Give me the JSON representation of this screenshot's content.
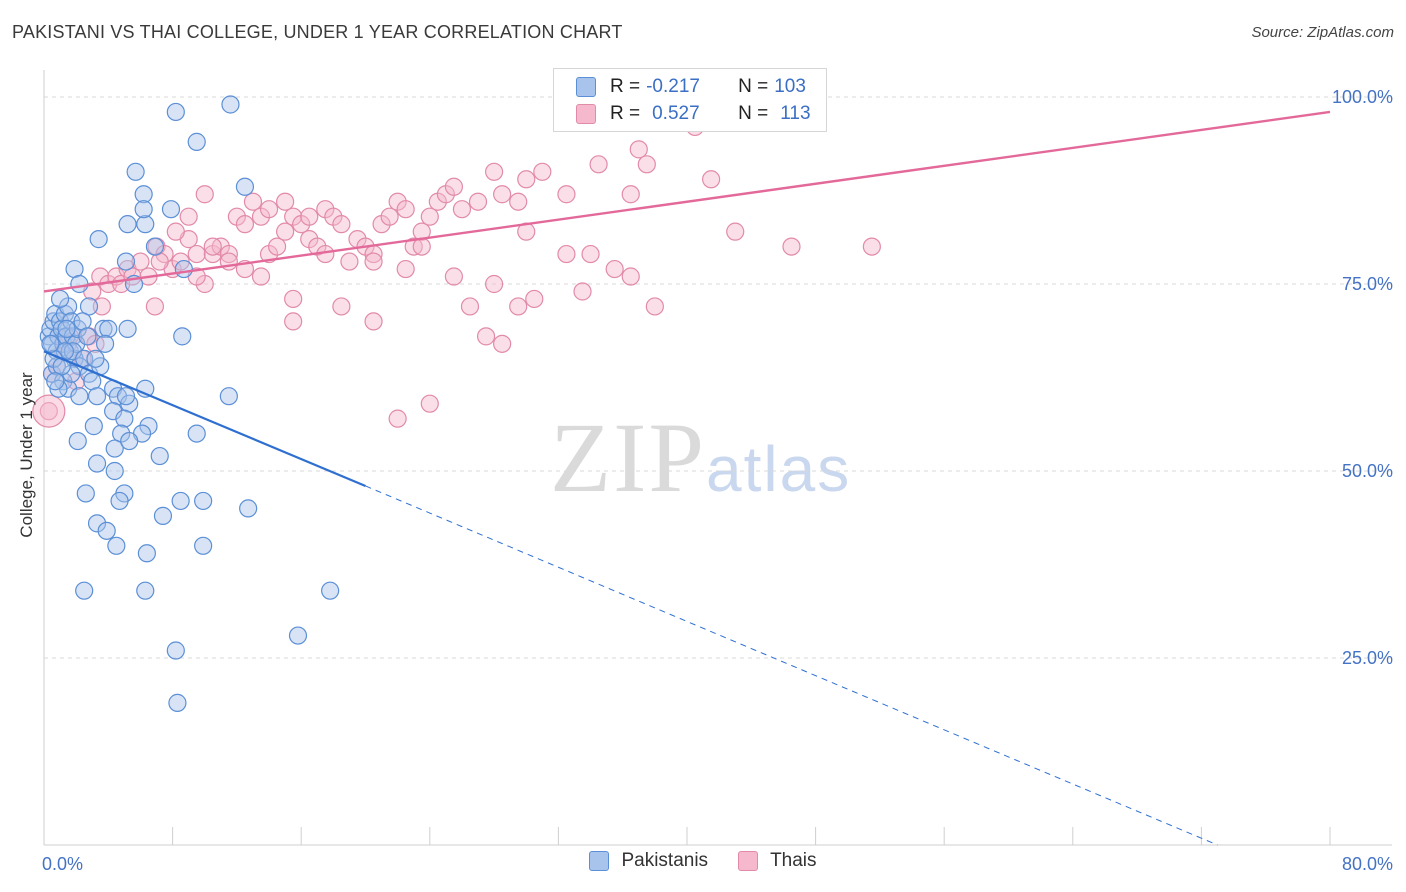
{
  "title": "PAKISTANI VS THAI COLLEGE, UNDER 1 YEAR CORRELATION CHART",
  "source": "Source: ZipAtlas.com",
  "watermark": {
    "zip": "ZIP",
    "atlas": "atlas"
  },
  "legend": {
    "r_label": "R =",
    "n_label": "N =",
    "rows": [
      {
        "r": "-0.217",
        "n": "103"
      },
      {
        "r": "0.527",
        "n": "113"
      }
    ]
  },
  "colors": {
    "pakistanis_fill": "#a9c4ec",
    "pakistanis_stroke": "#5b8fd6",
    "pakistanis_line": "#2e6fd0",
    "thais_fill": "#f5b8cd",
    "thais_stroke": "#e28aaa",
    "thais_line": "#e3699a",
    "grid": "#d9d9d9",
    "axis_text": "#4472c4"
  },
  "chart_data": {
    "type": "scatter",
    "xlabel": "",
    "ylabel": "College, Under 1 year",
    "xlim": [
      0,
      80
    ],
    "ylim": [
      0,
      103
    ],
    "x_ticks": [
      "0.0%",
      "80.0%"
    ],
    "y_ticks": [
      {
        "value": 25,
        "label": "25.0%"
      },
      {
        "value": 50,
        "label": "50.0%"
      },
      {
        "value": 75,
        "label": "75.0%"
      },
      {
        "value": 100,
        "label": "100.0%"
      }
    ],
    "grid": true,
    "legend_position": "bottom-center",
    "series": [
      {
        "name": "Pakistanis",
        "points": [
          [
            0.3,
            68
          ],
          [
            0.4,
            69
          ],
          [
            0.5,
            67
          ],
          [
            0.6,
            70
          ],
          [
            0.7,
            71
          ],
          [
            0.8,
            66
          ],
          [
            0.9,
            68
          ],
          [
            1.0,
            70
          ],
          [
            1.1,
            69
          ],
          [
            1.2,
            67
          ],
          [
            1.3,
            71
          ],
          [
            1.4,
            68
          ],
          [
            1.5,
            72
          ],
          [
            1.6,
            66
          ],
          [
            1.7,
            70
          ],
          [
            1.8,
            68
          ],
          [
            1.9,
            65
          ],
          [
            2.0,
            67
          ],
          [
            2.1,
            69
          ],
          [
            2.2,
            64
          ],
          [
            0.5,
            63
          ],
          [
            0.8,
            64
          ],
          [
            1.2,
            62
          ],
          [
            1.5,
            61
          ],
          [
            1.8,
            66
          ],
          [
            2.2,
            60
          ],
          [
            2.5,
            65
          ],
          [
            2.8,
            63
          ],
          [
            3.0,
            62
          ],
          [
            3.3,
            60
          ],
          [
            1.9,
            77
          ],
          [
            2.2,
            75
          ],
          [
            3.7,
            69
          ],
          [
            4.0,
            69
          ],
          [
            5.2,
            69
          ],
          [
            3.4,
            81
          ],
          [
            2.8,
            72
          ],
          [
            3.5,
            64
          ],
          [
            3.8,
            67
          ],
          [
            4.3,
            61
          ],
          [
            4.6,
            60
          ],
          [
            5.3,
            59
          ],
          [
            5.1,
            60
          ],
          [
            6.3,
            61
          ],
          [
            4.3,
            58
          ],
          [
            5.0,
            57
          ],
          [
            4.8,
            55
          ],
          [
            6.5,
            56
          ],
          [
            6.1,
            55
          ],
          [
            7.2,
            52
          ],
          [
            2.1,
            54
          ],
          [
            3.1,
            56
          ],
          [
            4.4,
            53
          ],
          [
            5.3,
            54
          ],
          [
            3.3,
            51
          ],
          [
            4.4,
            50
          ],
          [
            5.0,
            47
          ],
          [
            4.7,
            46
          ],
          [
            2.6,
            47
          ],
          [
            3.3,
            43
          ],
          [
            3.9,
            42
          ],
          [
            4.5,
            40
          ],
          [
            6.4,
            39
          ],
          [
            7.4,
            44
          ],
          [
            8.5,
            46
          ],
          [
            9.9,
            46
          ],
          [
            9.9,
            40
          ],
          [
            11.5,
            60
          ],
          [
            12.7,
            45
          ],
          [
            9.5,
            55
          ],
          [
            8.6,
            68
          ],
          [
            8.7,
            77
          ],
          [
            6.9,
            80
          ],
          [
            5.1,
            78
          ],
          [
            5.6,
            75
          ],
          [
            6.3,
            83
          ],
          [
            5.2,
            83
          ],
          [
            6.2,
            87
          ],
          [
            5.7,
            90
          ],
          [
            6.2,
            85
          ],
          [
            8.2,
            98
          ],
          [
            9.5,
            94
          ],
          [
            11.6,
            99
          ],
          [
            12.5,
            88
          ],
          [
            7.9,
            85
          ],
          [
            2.5,
            34
          ],
          [
            6.3,
            34
          ],
          [
            8.2,
            26
          ],
          [
            8.3,
            19
          ],
          [
            15.8,
            28
          ],
          [
            17.8,
            34
          ],
          [
            1.0,
            73
          ],
          [
            1.3,
            66
          ],
          [
            0.6,
            65
          ],
          [
            2.4,
            70
          ],
          [
            1.7,
            63
          ],
          [
            0.9,
            61
          ],
          [
            0.4,
            67
          ],
          [
            1.1,
            64
          ],
          [
            2.7,
            68
          ],
          [
            3.2,
            65
          ],
          [
            1.4,
            69
          ],
          [
            0.7,
            62
          ]
        ]
      },
      {
        "name": "Thais",
        "points": [
          [
            0.3,
            58
          ],
          [
            0.5,
            63
          ],
          [
            0.8,
            64
          ],
          [
            1.2,
            66
          ],
          [
            1.6,
            68
          ],
          [
            2.0,
            62
          ],
          [
            1.5,
            67
          ],
          [
            2.4,
            65
          ],
          [
            2.8,
            68
          ],
          [
            3.2,
            67
          ],
          [
            3.0,
            74
          ],
          [
            3.5,
            76
          ],
          [
            4.0,
            75
          ],
          [
            4.5,
            76
          ],
          [
            4.8,
            75
          ],
          [
            5.2,
            77
          ],
          [
            5.5,
            76
          ],
          [
            6.0,
            78
          ],
          [
            6.5,
            76
          ],
          [
            7.0,
            80
          ],
          [
            7.5,
            79
          ],
          [
            8.0,
            77
          ],
          [
            8.5,
            78
          ],
          [
            9.0,
            81
          ],
          [
            9.5,
            79
          ],
          [
            10.0,
            75
          ],
          [
            10.5,
            79
          ],
          [
            11.0,
            80
          ],
          [
            11.5,
            79
          ],
          [
            12.0,
            84
          ],
          [
            12.5,
            83
          ],
          [
            13.0,
            86
          ],
          [
            13.5,
            84
          ],
          [
            14.0,
            79
          ],
          [
            14.5,
            80
          ],
          [
            15.0,
            82
          ],
          [
            15.5,
            84
          ],
          [
            16.0,
            83
          ],
          [
            16.5,
            81
          ],
          [
            17.0,
            80
          ],
          [
            17.5,
            85
          ],
          [
            18.0,
            84
          ],
          [
            18.5,
            83
          ],
          [
            19.0,
            78
          ],
          [
            19.5,
            81
          ],
          [
            20.0,
            80
          ],
          [
            20.5,
            79
          ],
          [
            21.0,
            83
          ],
          [
            21.5,
            84
          ],
          [
            22.0,
            86
          ],
          [
            22.5,
            85
          ],
          [
            23.0,
            80
          ],
          [
            23.5,
            82
          ],
          [
            24.0,
            84
          ],
          [
            24.5,
            86
          ],
          [
            25.0,
            87
          ],
          [
            25.5,
            88
          ],
          [
            26.0,
            85
          ],
          [
            27.0,
            86
          ],
          [
            28.0,
            90
          ],
          [
            28.5,
            87
          ],
          [
            29.5,
            86
          ],
          [
            30.0,
            89
          ],
          [
            31.0,
            90
          ],
          [
            32.5,
            87
          ],
          [
            34.5,
            91
          ],
          [
            36.5,
            87
          ],
          [
            37.0,
            93
          ],
          [
            37.5,
            91
          ],
          [
            39.0,
            100
          ],
          [
            40.5,
            96
          ],
          [
            41.5,
            89
          ],
          [
            43.0,
            82
          ],
          [
            46.5,
            80
          ],
          [
            51.5,
            80
          ],
          [
            6.9,
            72
          ],
          [
            7.2,
            78
          ],
          [
            8.2,
            82
          ],
          [
            9.5,
            76
          ],
          [
            10.5,
            80
          ],
          [
            11.5,
            78
          ],
          [
            12.5,
            77
          ],
          [
            13.5,
            76
          ],
          [
            15.5,
            73
          ],
          [
            15.5,
            70
          ],
          [
            17.5,
            79
          ],
          [
            18.5,
            72
          ],
          [
            20.5,
            78
          ],
          [
            22.5,
            77
          ],
          [
            23.5,
            80
          ],
          [
            25.5,
            76
          ],
          [
            26.5,
            72
          ],
          [
            27.5,
            68
          ],
          [
            28.5,
            67
          ],
          [
            29.5,
            72
          ],
          [
            30.5,
            73
          ],
          [
            32.5,
            79
          ],
          [
            33.5,
            74
          ],
          [
            35.5,
            77
          ],
          [
            36.5,
            76
          ],
          [
            38.0,
            72
          ],
          [
            24.0,
            59
          ],
          [
            22.0,
            57
          ],
          [
            28.0,
            75
          ],
          [
            30.0,
            82
          ],
          [
            34.0,
            79
          ],
          [
            20.5,
            70
          ],
          [
            16.5,
            84
          ],
          [
            15.0,
            86
          ],
          [
            14.0,
            85
          ],
          [
            9.0,
            84
          ],
          [
            10.0,
            87
          ],
          [
            3.6,
            72
          ]
        ]
      }
    ],
    "trendlines": [
      {
        "series": "Pakistanis",
        "from": [
          0,
          66
        ],
        "to_solid": [
          20,
          48
        ],
        "to_dashed": [
          73,
          0
        ]
      },
      {
        "series": "Thais",
        "from": [
          0,
          74
        ],
        "to": [
          80,
          98
        ]
      }
    ]
  }
}
